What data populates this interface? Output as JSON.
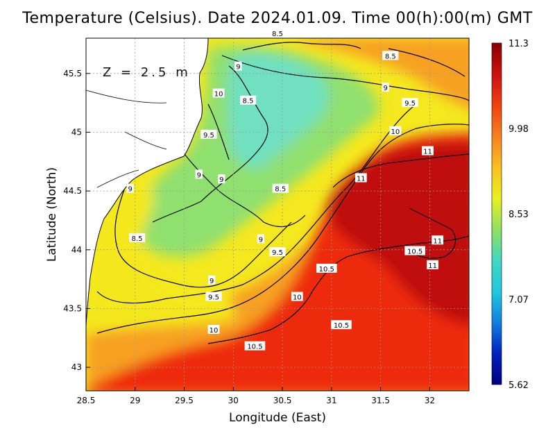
{
  "title": "Temperature (Celsius). Date 2024.01.09. Time 00(h):00(m) GMT",
  "depth_label": "Z = 2.5 m",
  "xlabel": "Longitude (East)",
  "ylabel": "Latitude (North)",
  "x_ticks": [
    "28.5",
    "29",
    "29.5",
    "30",
    "30.5",
    "31",
    "31.5",
    "32"
  ],
  "y_ticks": [
    "43",
    "43.5",
    "44",
    "44.5",
    "45",
    "45.5"
  ],
  "colorbar": {
    "labels": [
      "11.3",
      "9.98",
      "8.53",
      "7.07",
      "5.62"
    ],
    "colors": [
      "#8b0000",
      "#cc1010",
      "#f04010",
      "#f88020",
      "#f8c020",
      "#e8f020",
      "#90e060",
      "#40d8c0",
      "#20c8e0",
      "#1080e0",
      "#0020c0",
      "#000080"
    ]
  },
  "colors": {
    "cold": "#6fe0c0",
    "cool": "#90e070",
    "mild": "#f4e81e",
    "warm": "#f7a020",
    "hot": "#ee2a10",
    "hottest": "#c01010",
    "land": "#ffffff"
  },
  "contour_labels": [
    {
      "text": "8.5",
      "lon": 30.45,
      "lat": 45.84
    },
    {
      "text": "8.5",
      "lon": 31.6,
      "lat": 45.65
    },
    {
      "text": "9",
      "lon": 30.05,
      "lat": 45.56
    },
    {
      "text": "9",
      "lon": 31.55,
      "lat": 45.38
    },
    {
      "text": "10",
      "lon": 29.85,
      "lat": 45.33
    },
    {
      "text": "8.5",
      "lon": 30.15,
      "lat": 45.27
    },
    {
      "text": "9.5",
      "lon": 31.8,
      "lat": 45.25
    },
    {
      "text": "10",
      "lon": 31.65,
      "lat": 45.01
    },
    {
      "text": "9.5",
      "lon": 29.75,
      "lat": 44.98
    },
    {
      "text": "11",
      "lon": 31.98,
      "lat": 44.84
    },
    {
      "text": "9",
      "lon": 29.65,
      "lat": 44.64
    },
    {
      "text": "9",
      "lon": 29.88,
      "lat": 44.6
    },
    {
      "text": "11",
      "lon": 31.3,
      "lat": 44.61
    },
    {
      "text": "9",
      "lon": 28.95,
      "lat": 44.52
    },
    {
      "text": "8.5",
      "lon": 30.48,
      "lat": 44.52
    },
    {
      "text": "8.5",
      "lon": 29.02,
      "lat": 44.1
    },
    {
      "text": "9",
      "lon": 30.28,
      "lat": 44.09
    },
    {
      "text": "11",
      "lon": 32.08,
      "lat": 44.08
    },
    {
      "text": "9.5",
      "lon": 30.45,
      "lat": 43.98
    },
    {
      "text": "10.5",
      "lon": 31.85,
      "lat": 43.99
    },
    {
      "text": "11",
      "lon": 32.03,
      "lat": 43.87
    },
    {
      "text": "10.5",
      "lon": 30.95,
      "lat": 43.84
    },
    {
      "text": "9",
      "lon": 29.78,
      "lat": 43.74
    },
    {
      "text": "9.5",
      "lon": 29.8,
      "lat": 43.6
    },
    {
      "text": "10",
      "lon": 30.65,
      "lat": 43.6
    },
    {
      "text": "10.5",
      "lon": 31.1,
      "lat": 43.36
    },
    {
      "text": "10",
      "lon": 29.8,
      "lat": 43.32
    },
    {
      "text": "10.5",
      "lon": 30.22,
      "lat": 43.18
    }
  ]
}
